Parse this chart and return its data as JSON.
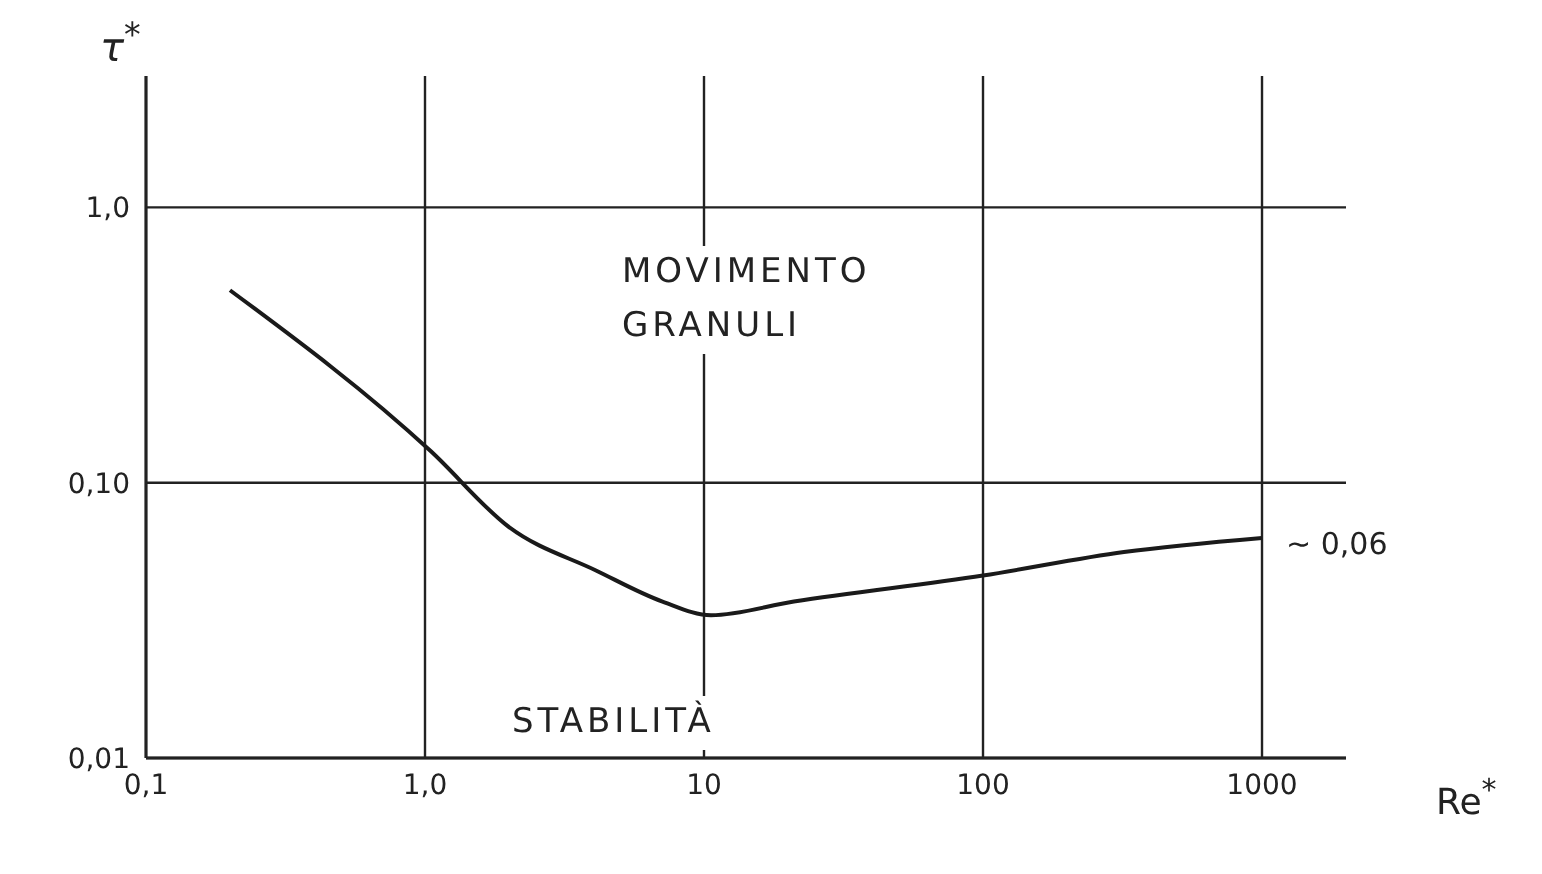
{
  "chart_data": {
    "type": "line",
    "xlabel": "Re$^{*}$",
    "ylabel": "τ$^{*}$",
    "log": "xy",
    "grid": true,
    "marker": "none",
    "line_style": "solid",
    "xlim": [
      0.1,
      2000
    ],
    "ylim": [
      0.01,
      3
    ],
    "xticks": [
      {
        "value": 0.1,
        "label": "0,1"
      },
      {
        "value": 1,
        "label": "1,0"
      },
      10,
      100,
      1000
    ],
    "yticks": [
      {
        "value": 0.01,
        "label": "0,01"
      },
      {
        "value": 0.1,
        "label": "0,10"
      },
      {
        "value": 1,
        "label": "1,0"
      }
    ],
    "x": [
      0.2,
      1.05,
      2.0,
      4.1,
      7.1,
      10.6,
      21,
      100,
      320,
      1000
    ],
    "series": [
      {
        "color": "#1a1a1a",
        "values": [
          0.5,
          0.13,
          0.069,
          0.048,
          0.037,
          0.033,
          0.037,
          0.046,
          0.056,
          0.063
        ]
      }
    ],
    "annotations": [
      "MOVIMENTO GRANULI",
      "STABILITÀ",
      {
        "text": "∼ 0,06",
        "x": 1000,
        "y": 0.06
      }
    ]
  }
}
